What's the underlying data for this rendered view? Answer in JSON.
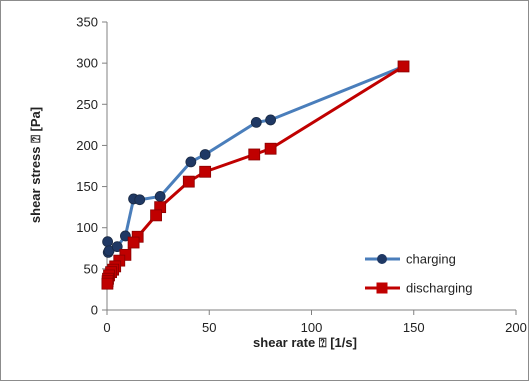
{
  "chart_data": {
    "type": "line",
    "xlabel": "shear rate ⍰ [1/s]",
    "ylabel": "shear stress ⍰ [Pa]",
    "xlim": [
      0,
      200
    ],
    "ylim": [
      0,
      350
    ],
    "xticks": [
      "0",
      "50",
      "100",
      "150",
      "200"
    ],
    "yticks": [
      "0",
      "50",
      "100",
      "150",
      "200",
      "250",
      "300",
      "350"
    ],
    "grid": false,
    "legend_position": "bottom-right",
    "series": [
      {
        "name": "charging",
        "color": "#4a7ebb",
        "marker_color": "#1f3864",
        "marker": "circle",
        "points": [
          [
            0.3,
            83
          ],
          [
            0.6,
            70
          ],
          [
            1,
            72
          ],
          [
            5,
            77
          ],
          [
            9,
            90
          ],
          [
            13,
            135
          ],
          [
            16,
            134
          ],
          [
            26,
            138
          ],
          [
            41,
            180
          ],
          [
            48,
            189
          ],
          [
            73,
            228
          ],
          [
            80,
            231
          ],
          [
            145,
            296
          ]
        ]
      },
      {
        "name": "discharging",
        "color": "#c00000",
        "marker_color": "#c00000",
        "marker": "square",
        "points": [
          [
            145,
            296
          ],
          [
            80,
            196
          ],
          [
            72,
            189
          ],
          [
            48,
            168
          ],
          [
            40,
            156
          ],
          [
            26,
            125
          ],
          [
            24,
            115
          ],
          [
            15,
            89
          ],
          [
            13,
            82
          ],
          [
            9,
            67
          ],
          [
            6,
            60
          ],
          [
            4,
            53
          ],
          [
            3,
            49
          ],
          [
            2,
            46
          ],
          [
            1,
            42
          ],
          [
            0.5,
            38
          ],
          [
            0.3,
            35
          ],
          [
            0.2,
            32
          ]
        ]
      }
    ]
  }
}
